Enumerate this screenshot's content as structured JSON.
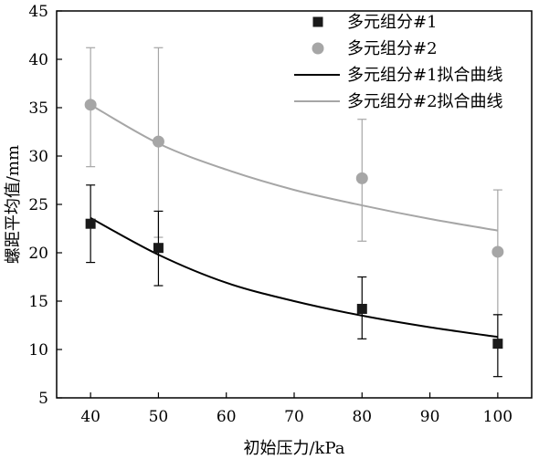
{
  "chart_data": {
    "type": "scatter",
    "xlabel": "初始压力/kPa",
    "ylabel": "螺距平均值/mm",
    "xlim": [
      35,
      105
    ],
    "ylim": [
      5,
      45
    ],
    "xticks": [
      40,
      50,
      60,
      70,
      80,
      90,
      100
    ],
    "yticks": [
      5,
      10,
      15,
      20,
      25,
      30,
      35,
      40,
      45
    ],
    "grid": false,
    "legend_position": "top-right",
    "series": [
      {
        "name": "多元组分#1",
        "kind": "points",
        "marker": "square",
        "color": "#1a1a1a",
        "x": [
          40,
          50,
          80,
          100
        ],
        "y": [
          23.0,
          20.5,
          14.2,
          10.6
        ],
        "err_low": [
          19.0,
          16.6,
          11.1,
          7.2
        ],
        "err_high": [
          27.0,
          24.3,
          17.5,
          13.6
        ]
      },
      {
        "name": "多元组分#2",
        "kind": "points",
        "marker": "circle",
        "color": "#a6a6a6",
        "x": [
          40,
          50,
          80,
          100
        ],
        "y": [
          35.3,
          31.5,
          27.7,
          20.1
        ],
        "err_low": [
          28.9,
          21.6,
          21.2,
          13.6
        ],
        "err_high": [
          41.2,
          41.2,
          33.8,
          26.5
        ]
      },
      {
        "name": "多元组分#1拟合曲线",
        "kind": "fit",
        "color": "#000000",
        "x": [
          40,
          50,
          60,
          70,
          80,
          90,
          100
        ],
        "y": [
          23.6,
          19.8,
          16.9,
          15.0,
          13.5,
          12.3,
          11.3
        ]
      },
      {
        "name": "多元组分#2拟合曲线",
        "kind": "fit",
        "color": "#a6a6a6",
        "x": [
          40,
          50,
          60,
          70,
          80,
          90,
          100
        ],
        "y": [
          35.3,
          31.3,
          28.6,
          26.5,
          24.9,
          23.5,
          22.3
        ]
      }
    ]
  }
}
